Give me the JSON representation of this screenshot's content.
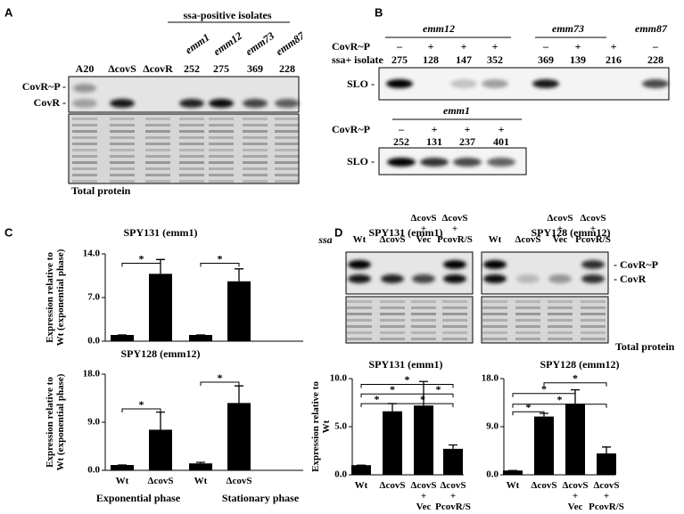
{
  "panels": {
    "A": {
      "label": "A",
      "header": "ssa-positive isolates",
      "emm": [
        "emm1",
        "emm12",
        "emm73",
        "emm87"
      ],
      "lanes": [
        "A20",
        "ΔcovS",
        "ΔcovR",
        "252",
        "275",
        "369",
        "228"
      ],
      "bands": [
        "CovR~P -",
        "CovR -"
      ],
      "footer": "Total protein"
    },
    "B": {
      "label": "B",
      "top": {
        "groups": [
          "emm12",
          "emm73",
          "emm87"
        ],
        "row_labels": [
          "CovR~P",
          "ssa+ isolate"
        ],
        "covr": [
          "–",
          "+",
          "+",
          "+",
          "–",
          "+",
          "+",
          "–"
        ],
        "isolates": [
          "275",
          "128",
          "147",
          "352",
          "369",
          "139",
          "216",
          "228"
        ],
        "blot": "SLO -"
      },
      "bottom": {
        "group": "emm1",
        "row_label": "CovR~P",
        "covr": [
          "–",
          "+",
          "+",
          "+"
        ],
        "isolates": [
          "252",
          "131",
          "237",
          "401"
        ],
        "blot": "SLO -"
      }
    },
    "C": {
      "label": "C",
      "groups": [
        "Exponential phase",
        "Stationary phase"
      ]
    },
    "D": {
      "label": "D",
      "titles": [
        "SPY131 (emm1)",
        "SPY128 (emm12)"
      ],
      "lanes": [
        "Wt",
        "ΔcovS",
        "ΔcovS\n+\nVec",
        "ΔcovS\n+\nPcovR/S"
      ],
      "bands": [
        "- CovR~P",
        "- CovR"
      ],
      "footer": "Total protein"
    }
  },
  "chart_data": [
    {
      "type": "bar",
      "title": "SPY131 (emm1)",
      "note": "ssa",
      "y_label": "Expression relative to Wt (exponential phase)",
      "categories": [
        null,
        null,
        null,
        null
      ],
      "values": [
        1,
        10.8,
        1,
        9.6
      ],
      "errors": [
        0,
        2.3,
        0,
        2
      ],
      "color": "#000000",
      "ylim": [
        0,
        14
      ],
      "yticks": [
        {
          "value": 0,
          "label": "0.0"
        },
        {
          "value": 7,
          "label": "7.0"
        },
        {
          "value": 14,
          "label": "14.0"
        }
      ],
      "annotations": [
        "*",
        "*"
      ]
    },
    {
      "type": "bar",
      "title": "SPY128 (emm12)",
      "y_label": "Expression relative to Wt (exponential phase)",
      "categories": [
        "Wt",
        "ΔcovS",
        "Wt",
        "ΔcovS"
      ],
      "values": [
        1,
        7.6,
        1.3,
        12.6
      ],
      "errors": [
        0,
        3.3,
        0.2,
        3.2
      ],
      "color": "#000000",
      "ylim": [
        0,
        18
      ],
      "yticks": [
        {
          "value": 0,
          "label": "0.0"
        },
        {
          "value": 9,
          "label": "9.0"
        },
        {
          "value": 18,
          "label": "18.0"
        }
      ],
      "annotations": [
        "*",
        "*"
      ]
    },
    {
      "type": "bar",
      "title": "SPY131 (emm1)",
      "y_label": "Expression relative to Wt",
      "categories": [
        "Wt",
        "ΔcovS",
        "ΔcovS\n+\nVec",
        "ΔcovS\n+\nPcovR/S"
      ],
      "values": [
        1,
        6.6,
        7.2,
        2.7
      ],
      "errors": [
        0,
        0.8,
        2.5,
        0.4
      ],
      "color": "#000000",
      "ylim": [
        0,
        10
      ],
      "yticks": [
        {
          "value": 0,
          "label": "0.0"
        },
        {
          "value": 5,
          "label": "5.0"
        },
        {
          "value": 10,
          "label": "10.0"
        }
      ],
      "annotations": [
        "*",
        "*",
        "*",
        "*",
        "*"
      ]
    },
    {
      "type": "bar",
      "title": "SPY128 (emm12)",
      "categories": [
        "Wt",
        "ΔcovS",
        "ΔcovS\n+\nVec",
        "ΔcovS\n+\nPcovR/S"
      ],
      "values": [
        0.8,
        10.9,
        13.3,
        4
      ],
      "errors": [
        0,
        0.6,
        2.6,
        1.2
      ],
      "color": "#000000",
      "ylim": [
        0,
        18
      ],
      "yticks": [
        {
          "value": 0,
          "label": "0.0"
        },
        {
          "value": 9,
          "label": "9.0"
        },
        {
          "value": 18,
          "label": "18.0"
        }
      ],
      "annotations": [
        "*",
        "*",
        "*",
        "*"
      ]
    }
  ]
}
